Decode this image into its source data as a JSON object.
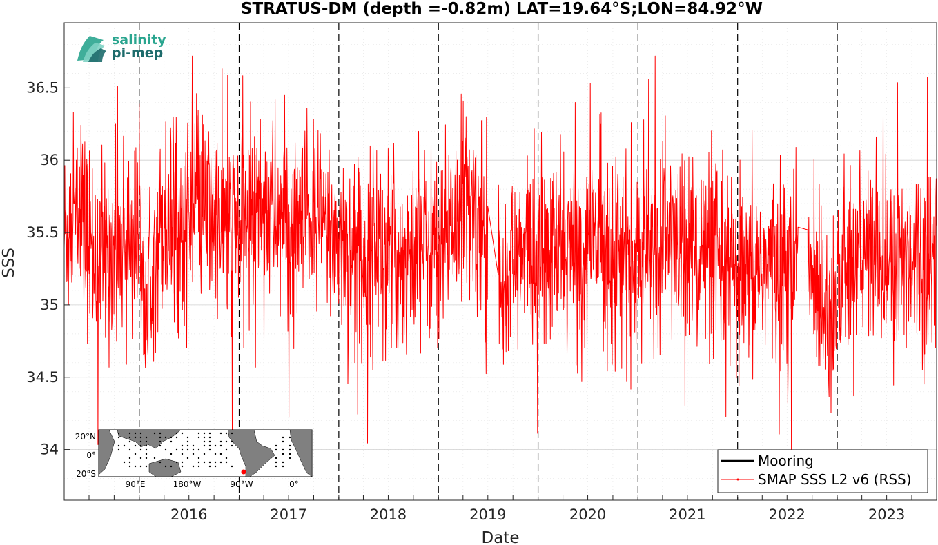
{
  "chart_data": {
    "type": "line",
    "title": "STRATUS-DM (depth =-0.82m) LAT=19.64°S;LON=84.92°W",
    "xlabel": "Date",
    "ylabel": "SSS",
    "xlim": [
      "2015-04-01",
      "2023-12-31"
    ],
    "ylim": [
      33.65,
      36.95
    ],
    "x_ticks": [
      "2016",
      "2017",
      "2018",
      "2019",
      "2020",
      "2021",
      "2022",
      "2023"
    ],
    "y_ticks": [
      34,
      34.5,
      35,
      35.5,
      36,
      36.5
    ],
    "year_boundaries": [
      "2016-01-01",
      "2017-01-01",
      "2018-01-01",
      "2019-01-01",
      "2020-01-01",
      "2021-01-01",
      "2022-01-01",
      "2023-01-01"
    ],
    "grid": true,
    "legend_position": "bottom-right",
    "series": [
      {
        "name": "Mooring",
        "color": "#000000",
        "x": [],
        "y": []
      },
      {
        "name": "SMAP SSS L2 v6 (RSS)",
        "color": "#ff0000",
        "note": "representative envelope samples",
        "x": [
          "2015-04-01",
          "2015-06-01",
          "2015-08-01",
          "2015-10-01",
          "2015-12-01",
          "2016-02-01",
          "2016-04-01",
          "2016-06-01",
          "2016-08-01",
          "2016-10-01",
          "2016-12-01",
          "2017-02-01",
          "2017-04-01",
          "2017-06-01",
          "2017-08-01",
          "2017-10-01",
          "2017-12-01",
          "2018-02-01",
          "2018-04-01",
          "2018-06-01",
          "2018-08-01",
          "2018-10-01",
          "2018-12-01",
          "2019-02-01",
          "2019-04-01",
          "2019-06-01",
          "2019-08-01",
          "2019-10-01",
          "2019-12-01",
          "2020-02-01",
          "2020-04-01",
          "2020-06-01",
          "2020-08-01",
          "2020-10-01",
          "2020-12-01",
          "2021-02-01",
          "2021-04-01",
          "2021-06-01",
          "2021-08-01",
          "2021-10-01",
          "2021-12-01",
          "2022-02-01",
          "2022-04-01",
          "2022-06-01",
          "2022-08-01",
          "2022-10-01",
          "2022-12-01",
          "2023-02-01",
          "2023-04-01",
          "2023-06-01",
          "2023-08-01",
          "2023-10-01",
          "2023-12-01"
        ],
        "y": [
          35.5,
          35.6,
          35.3,
          35.4,
          35.5,
          35.3,
          35.6,
          35.5,
          35.7,
          35.6,
          35.5,
          35.6,
          35.7,
          35.6,
          35.5,
          35.6,
          35.5,
          35.4,
          35.3,
          35.5,
          35.3,
          35.4,
          35.4,
          35.5,
          35.7,
          35.6,
          35.3,
          35.2,
          35.4,
          35.3,
          35.4,
          35.3,
          35.5,
          35.4,
          35.3,
          35.3,
          35.5,
          35.4,
          35.4,
          35.3,
          35.2,
          35.1,
          35.3,
          35.2,
          35.3,
          35.2,
          35.0,
          35.2,
          35.4,
          35.3,
          35.2,
          35.4,
          35.3
        ]
      }
    ]
  },
  "inset_map": {
    "lat_labels": [
      "20°N",
      "0°",
      "20°S"
    ],
    "lon_labels": [
      "90°E",
      "180°W",
      "90°W",
      "0°"
    ]
  },
  "logo": {
    "line1": "salinity",
    "line2": "pi-mep"
  },
  "colors": {
    "series": "#ff0000",
    "mooring": "#000000",
    "grid": "#d9d9d9",
    "logo_teal": "#2aa58f",
    "logo_dark": "#1d6b6b",
    "land": "#808080"
  }
}
